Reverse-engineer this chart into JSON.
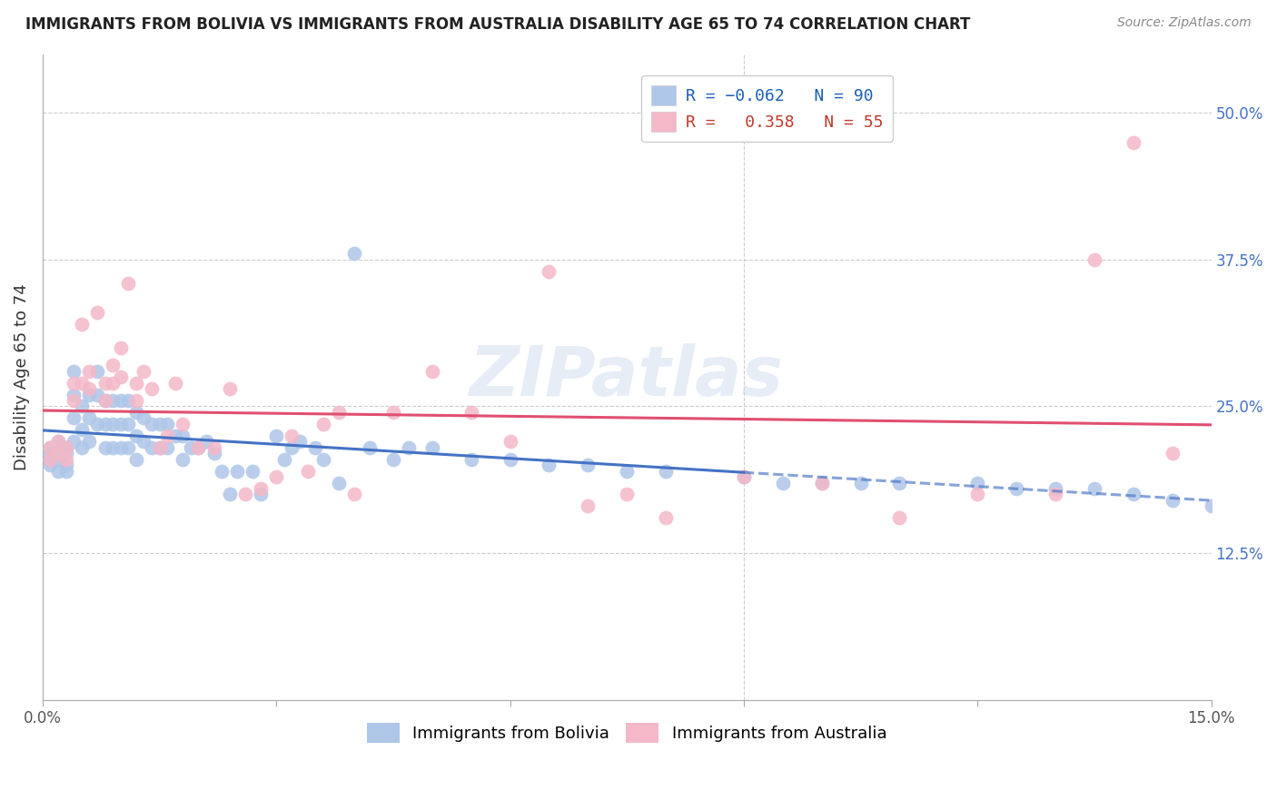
{
  "title": "IMMIGRANTS FROM BOLIVIA VS IMMIGRANTS FROM AUSTRALIA DISABILITY AGE 65 TO 74 CORRELATION CHART",
  "source": "Source: ZipAtlas.com",
  "ylabel": "Disability Age 65 to 74",
  "xlim": [
    0.0,
    0.15
  ],
  "ylim": [
    0.0,
    0.55
  ],
  "bolivia_color": "#aec6e8",
  "australia_color": "#f4b8c8",
  "bolivia_line_color": "#4472c4",
  "australia_line_color": "#e05070",
  "bolivia_R": -0.062,
  "bolivia_N": 90,
  "australia_R": 0.358,
  "australia_N": 55,
  "legend_label1": "Immigrants from Bolivia",
  "legend_label2": "Immigrants from Australia",
  "watermark": "ZIPatlas",
  "bolivia_x": [
    0.001,
    0.001,
    0.001,
    0.001,
    0.002,
    0.002,
    0.002,
    0.002,
    0.003,
    0.003,
    0.003,
    0.003,
    0.004,
    0.004,
    0.004,
    0.004,
    0.005,
    0.005,
    0.005,
    0.006,
    0.006,
    0.006,
    0.007,
    0.007,
    0.007,
    0.008,
    0.008,
    0.008,
    0.009,
    0.009,
    0.009,
    0.01,
    0.01,
    0.01,
    0.011,
    0.011,
    0.011,
    0.012,
    0.012,
    0.012,
    0.013,
    0.013,
    0.014,
    0.014,
    0.015,
    0.015,
    0.016,
    0.016,
    0.017,
    0.018,
    0.018,
    0.019,
    0.02,
    0.021,
    0.022,
    0.023,
    0.024,
    0.025,
    0.027,
    0.028,
    0.03,
    0.031,
    0.032,
    0.033,
    0.035,
    0.036,
    0.038,
    0.04,
    0.042,
    0.045,
    0.047,
    0.05,
    0.055,
    0.06,
    0.065,
    0.07,
    0.075,
    0.08,
    0.09,
    0.095,
    0.1,
    0.105,
    0.11,
    0.12,
    0.125,
    0.13,
    0.135,
    0.14,
    0.145,
    0.15
  ],
  "bolivia_y": [
    0.215,
    0.21,
    0.205,
    0.2,
    0.22,
    0.215,
    0.205,
    0.195,
    0.215,
    0.21,
    0.2,
    0.195,
    0.28,
    0.26,
    0.24,
    0.22,
    0.25,
    0.23,
    0.215,
    0.26,
    0.24,
    0.22,
    0.28,
    0.26,
    0.235,
    0.255,
    0.235,
    0.215,
    0.255,
    0.235,
    0.215,
    0.255,
    0.235,
    0.215,
    0.255,
    0.235,
    0.215,
    0.245,
    0.225,
    0.205,
    0.24,
    0.22,
    0.235,
    0.215,
    0.235,
    0.215,
    0.235,
    0.215,
    0.225,
    0.225,
    0.205,
    0.215,
    0.215,
    0.22,
    0.21,
    0.195,
    0.175,
    0.195,
    0.195,
    0.175,
    0.225,
    0.205,
    0.215,
    0.22,
    0.215,
    0.205,
    0.185,
    0.38,
    0.215,
    0.205,
    0.215,
    0.215,
    0.205,
    0.205,
    0.2,
    0.2,
    0.195,
    0.195,
    0.19,
    0.185,
    0.185,
    0.185,
    0.185,
    0.185,
    0.18,
    0.18,
    0.18,
    0.175,
    0.17,
    0.165
  ],
  "australia_x": [
    0.001,
    0.001,
    0.002,
    0.002,
    0.003,
    0.003,
    0.004,
    0.004,
    0.005,
    0.005,
    0.006,
    0.006,
    0.007,
    0.008,
    0.008,
    0.009,
    0.009,
    0.01,
    0.01,
    0.011,
    0.012,
    0.012,
    0.013,
    0.014,
    0.015,
    0.016,
    0.017,
    0.018,
    0.02,
    0.022,
    0.024,
    0.026,
    0.028,
    0.03,
    0.032,
    0.034,
    0.036,
    0.038,
    0.04,
    0.045,
    0.05,
    0.055,
    0.06,
    0.065,
    0.07,
    0.075,
    0.08,
    0.09,
    0.1,
    0.11,
    0.12,
    0.13,
    0.135,
    0.14,
    0.145
  ],
  "australia_y": [
    0.215,
    0.205,
    0.22,
    0.21,
    0.215,
    0.205,
    0.27,
    0.255,
    0.32,
    0.27,
    0.28,
    0.265,
    0.33,
    0.27,
    0.255,
    0.285,
    0.27,
    0.3,
    0.275,
    0.355,
    0.27,
    0.255,
    0.28,
    0.265,
    0.215,
    0.225,
    0.27,
    0.235,
    0.215,
    0.215,
    0.265,
    0.175,
    0.18,
    0.19,
    0.225,
    0.195,
    0.235,
    0.245,
    0.175,
    0.245,
    0.28,
    0.245,
    0.22,
    0.365,
    0.165,
    0.175,
    0.155,
    0.19,
    0.185,
    0.155,
    0.175,
    0.175,
    0.375,
    0.475,
    0.21
  ]
}
